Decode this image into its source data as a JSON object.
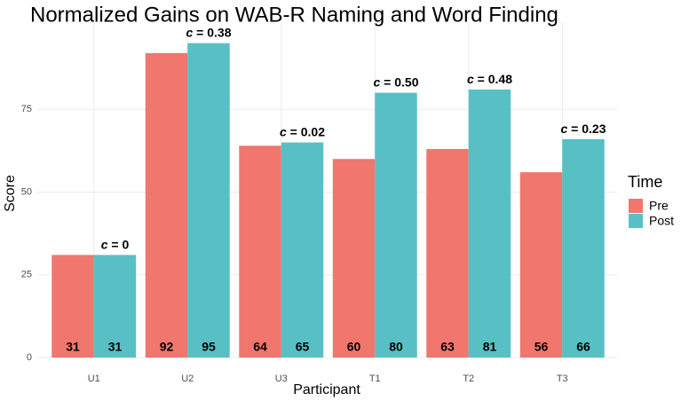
{
  "chart_data": {
    "type": "bar",
    "title": "Normalized Gains on WAB-R Naming and Word Finding",
    "x_label": "Participant",
    "y_label": "Score",
    "categories": [
      "U1",
      "U2",
      "U3",
      "T1",
      "T2",
      "T3"
    ],
    "series": [
      {
        "name": "Pre",
        "color": "#f0766e",
        "values": [
          31,
          92,
          64,
          60,
          63,
          56
        ]
      },
      {
        "name": "Post",
        "color": "#58c0c4",
        "values": [
          31,
          95,
          65,
          80,
          81,
          66
        ]
      }
    ],
    "annotations": [
      "c = 0",
      "c = 0.38",
      "c = 0.02",
      "c = 0.50",
      "c = 0.48",
      "c = 0.23"
    ],
    "legend_title": "Time",
    "legend_position": "right",
    "ylim": [
      0,
      100
    ],
    "yticks": [
      0,
      25,
      50,
      75
    ],
    "grid": true
  }
}
